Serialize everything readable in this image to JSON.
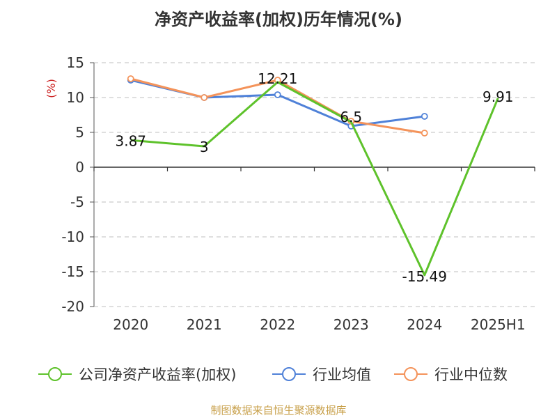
{
  "chart_data": {
    "type": "line",
    "title": "净资产收益率(加权)历年情况(%)",
    "ylabel": "(%)",
    "xlabel": "",
    "categories": [
      "2020",
      "2021",
      "2022",
      "2023",
      "2024",
      "2025H1"
    ],
    "ylim": [
      -20,
      15
    ],
    "yticks": [
      15,
      10,
      5,
      0,
      -5,
      -10,
      -15,
      -20
    ],
    "grid": true,
    "legend_position": "bottom",
    "series": [
      {
        "name": "公司净资产收益率(加权)",
        "color": "#5ec22b",
        "values": [
          3.87,
          3,
          12.21,
          6.5,
          -15.49,
          9.91
        ],
        "labels": [
          "3.87",
          "3",
          "12.21",
          "6.5",
          "-15.49",
          "9.91"
        ]
      },
      {
        "name": "行业均值",
        "color": "#4f81d8",
        "values": [
          12.5,
          10.0,
          10.4,
          5.9,
          7.3,
          null
        ]
      },
      {
        "name": "行业中位数",
        "color": "#f4935a",
        "values": [
          12.7,
          10.0,
          12.5,
          6.6,
          4.9,
          null
        ]
      }
    ]
  },
  "source": "制图数据来自恒生聚源数据库"
}
